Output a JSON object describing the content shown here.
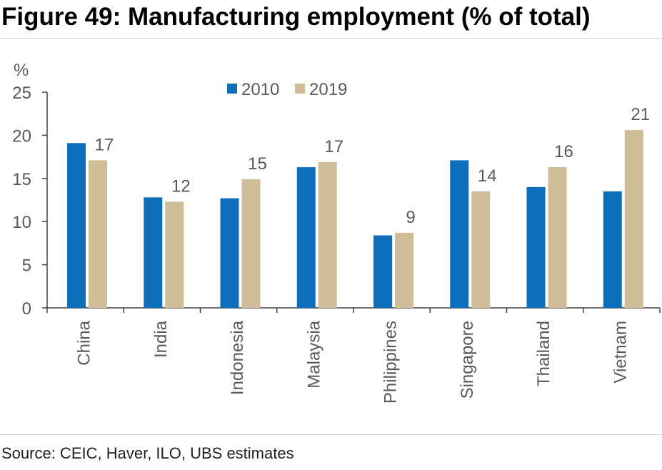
{
  "figure": {
    "title": "Figure 49: Manufacturing employment (% of total)",
    "source": "Source: CEIC, Haver, ILO, UBS estimates"
  },
  "chart_data": {
    "type": "bar",
    "ylabel": "%",
    "ylim": [
      0,
      25
    ],
    "yticks": [
      "0",
      "5",
      "10",
      "15",
      "20",
      "25"
    ],
    "categories": [
      "China",
      "India",
      "Indonesia",
      "Malaysia",
      "Philippines",
      "Singapore",
      "Thailand",
      "Vietnam"
    ],
    "series": [
      {
        "name": "2010",
        "color": "#0d6ebc",
        "values": [
          19.1,
          12.8,
          12.7,
          16.3,
          8.4,
          17.1,
          14.0,
          13.5
        ]
      },
      {
        "name": "2019",
        "color": "#cfbd98",
        "values": [
          17.1,
          12.3,
          14.9,
          16.9,
          8.7,
          13.5,
          16.3,
          20.6
        ],
        "data_labels": [
          "17",
          "12",
          "15",
          "17",
          "9",
          "14",
          "16",
          "21"
        ]
      }
    ],
    "legend_position": "top-center",
    "grid": false
  }
}
